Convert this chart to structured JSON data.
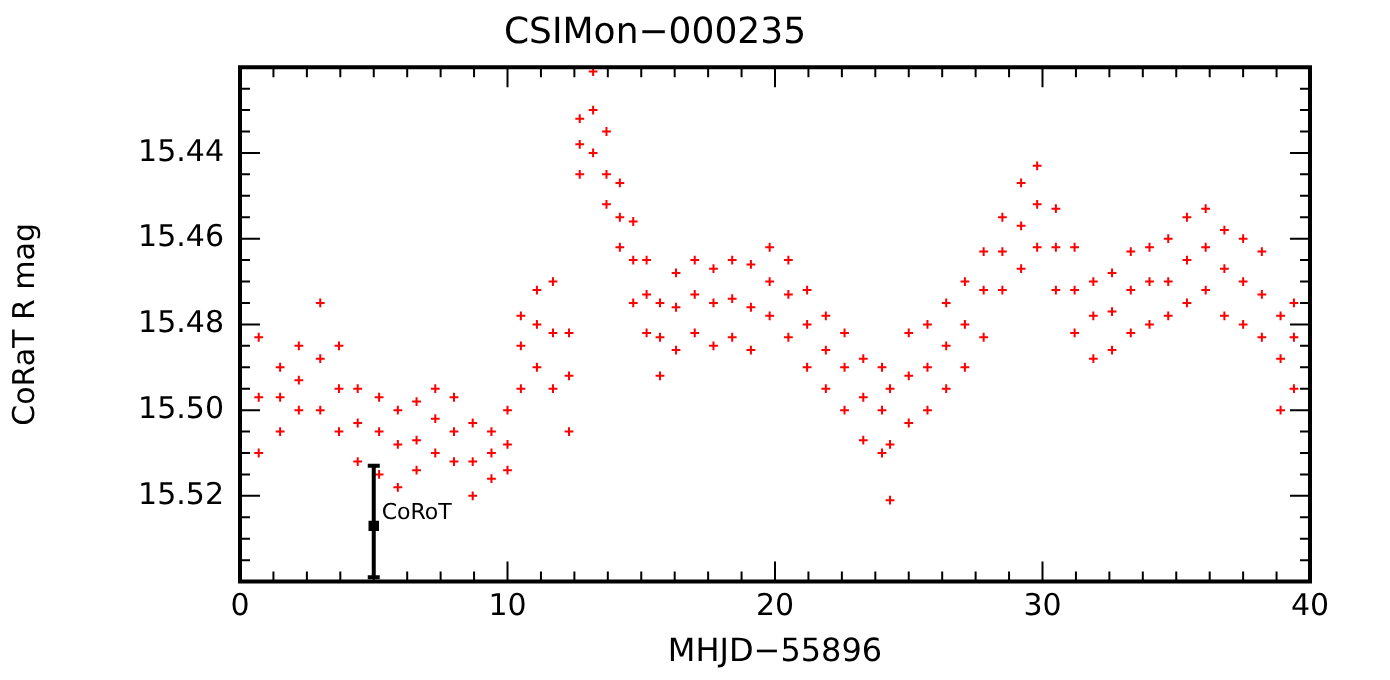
{
  "chart_data": {
    "type": "scatter",
    "title": "CSIMon−000235",
    "xlabel": "MHJD−55896",
    "ylabel": "CoRaT R mag",
    "xlim": [
      0,
      40
    ],
    "xticks": [
      0,
      {
        "value": 1.25,
        "label": null
      },
      {
        "value": 2.5,
        "label": null
      },
      {
        "value": 3.75,
        "label": null
      },
      {
        "value": 5,
        "label": null
      },
      {
        "value": 6.25,
        "label": null
      },
      {
        "value": 7.5,
        "label": null
      },
      {
        "value": 8.75,
        "label": null
      },
      10,
      {
        "value": 11.25,
        "label": null
      },
      {
        "value": 12.5,
        "label": null
      },
      {
        "value": 13.75,
        "label": null
      },
      {
        "value": 15,
        "label": null
      },
      {
        "value": 16.25,
        "label": null
      },
      {
        "value": 17.5,
        "label": null
      },
      {
        "value": 18.75,
        "label": null
      },
      20,
      {
        "value": 21.25,
        "label": null
      },
      {
        "value": 22.5,
        "label": null
      },
      {
        "value": 23.75,
        "label": null
      },
      {
        "value": 25,
        "label": null
      },
      {
        "value": 26.25,
        "label": null
      },
      {
        "value": 27.5,
        "label": null
      },
      {
        "value": 28.75,
        "label": null
      },
      30,
      {
        "value": 31.25,
        "label": null
      },
      {
        "value": 32.5,
        "label": null
      },
      {
        "value": 33.75,
        "label": null
      },
      {
        "value": 35,
        "label": null
      },
      {
        "value": 36.25,
        "label": null
      },
      {
        "value": 37.5,
        "label": null
      },
      {
        "value": 38.75,
        "label": null
      },
      40
    ],
    "ylim": [
      15.54,
      15.42
    ],
    "yticks": [
      {
        "value": 15.425,
        "label": null
      },
      {
        "value": 15.43,
        "label": null
      },
      {
        "value": 15.435,
        "label": null
      },
      15.44,
      {
        "value": 15.445,
        "label": null
      },
      {
        "value": 15.45,
        "label": null
      },
      {
        "value": 15.455,
        "label": null
      },
      15.46,
      {
        "value": 15.465,
        "label": null
      },
      {
        "value": 15.47,
        "label": null
      },
      {
        "value": 15.475,
        "label": null
      },
      15.48,
      {
        "value": 15.485,
        "label": null
      },
      {
        "value": 15.49,
        "label": null
      },
      {
        "value": 15.495,
        "label": null
      },
      {
        "value": 15.5,
        "label": "15.50"
      },
      {
        "value": 15.505,
        "label": null
      },
      {
        "value": 15.51,
        "label": null
      },
      {
        "value": 15.515,
        "label": null
      },
      15.52,
      {
        "value": 15.525,
        "label": null
      },
      {
        "value": 15.53,
        "label": null
      },
      {
        "value": 15.535,
        "label": null
      }
    ],
    "grid": false,
    "legend": false,
    "marker": "cross",
    "series": [
      {
        "color": "#ff0000",
        "x": [
          0.7,
          0.7,
          0.7,
          1.5,
          1.5,
          1.5,
          2.2,
          2.2,
          2.2,
          3.0,
          3.0,
          3.0,
          3.7,
          3.7,
          3.7,
          4.4,
          4.4,
          4.4,
          5.2,
          5.2,
          5.2,
          5.9,
          5.9,
          5.9,
          6.6,
          6.6,
          6.6,
          7.3,
          7.3,
          7.3,
          8.0,
          8.0,
          8.0,
          8.7,
          8.7,
          8.7,
          9.4,
          9.4,
          9.4,
          10.0,
          10.0,
          10.0,
          10.5,
          10.5,
          10.5,
          11.1,
          11.1,
          11.1,
          11.7,
          11.7,
          11.7,
          12.3,
          12.3,
          12.3,
          12.7,
          12.7,
          12.7,
          13.2,
          13.2,
          13.2,
          13.7,
          13.7,
          13.7,
          14.2,
          14.2,
          14.2,
          14.7,
          14.7,
          14.7,
          15.2,
          15.2,
          15.2,
          15.7,
          15.7,
          15.7,
          16.3,
          16.3,
          16.3,
          17.0,
          17.0,
          17.0,
          17.7,
          17.7,
          17.7,
          18.4,
          18.4,
          18.4,
          19.1,
          19.1,
          19.1,
          19.8,
          19.8,
          19.8,
          20.5,
          20.5,
          20.5,
          21.2,
          21.2,
          21.2,
          21.9,
          21.9,
          21.9,
          22.6,
          22.6,
          22.6,
          23.3,
          23.3,
          23.3,
          24.0,
          24.0,
          24.0,
          24.3,
          24.3,
          24.3,
          25.0,
          25.0,
          25.0,
          25.7,
          25.7,
          25.7,
          26.4,
          26.4,
          26.4,
          27.1,
          27.1,
          27.1,
          27.8,
          27.8,
          27.8,
          28.5,
          28.5,
          28.5,
          29.2,
          29.2,
          29.2,
          29.8,
          29.8,
          29.8,
          30.5,
          30.5,
          30.5,
          31.2,
          31.2,
          31.2,
          31.9,
          31.9,
          31.9,
          32.6,
          32.6,
          32.6,
          33.3,
          33.3,
          33.3,
          34.0,
          34.0,
          34.0,
          34.7,
          34.7,
          34.7,
          35.4,
          35.4,
          35.4,
          36.1,
          36.1,
          36.1,
          36.8,
          36.8,
          36.8,
          37.5,
          37.5,
          37.5,
          38.2,
          38.2,
          38.2,
          38.9,
          38.9,
          38.9,
          39.4,
          39.4,
          39.4
        ],
        "values": [
          15.483,
          15.497,
          15.51,
          15.49,
          15.497,
          15.505,
          15.485,
          15.493,
          15.5,
          15.475,
          15.488,
          15.5,
          15.485,
          15.495,
          15.505,
          15.495,
          15.503,
          15.512,
          15.497,
          15.505,
          15.515,
          15.5,
          15.508,
          15.518,
          15.498,
          15.507,
          15.514,
          15.495,
          15.502,
          15.51,
          15.497,
          15.505,
          15.512,
          15.503,
          15.512,
          15.52,
          15.505,
          15.51,
          15.516,
          15.5,
          15.508,
          15.514,
          15.478,
          15.485,
          15.495,
          15.472,
          15.48,
          15.49,
          15.47,
          15.482,
          15.495,
          15.482,
          15.492,
          15.505,
          15.432,
          15.438,
          15.445,
          15.421,
          15.43,
          15.44,
          15.435,
          15.445,
          15.452,
          15.447,
          15.455,
          15.462,
          15.456,
          15.465,
          15.475,
          15.465,
          15.473,
          15.482,
          15.475,
          15.483,
          15.492,
          15.468,
          15.476,
          15.486,
          15.465,
          15.473,
          15.482,
          15.467,
          15.475,
          15.485,
          15.465,
          15.474,
          15.483,
          15.466,
          15.476,
          15.486,
          15.462,
          15.47,
          15.478,
          15.465,
          15.473,
          15.483,
          15.472,
          15.48,
          15.49,
          15.478,
          15.486,
          15.495,
          15.482,
          15.49,
          15.5,
          15.488,
          15.497,
          15.507,
          15.49,
          15.5,
          15.51,
          15.495,
          15.508,
          15.521,
          15.482,
          15.492,
          15.503,
          15.48,
          15.49,
          15.5,
          15.475,
          15.485,
          15.495,
          15.47,
          15.48,
          15.49,
          15.463,
          15.472,
          15.483,
          15.455,
          15.463,
          15.472,
          15.447,
          15.457,
          15.467,
          15.443,
          15.452,
          15.462,
          15.453,
          15.462,
          15.472,
          15.462,
          15.472,
          15.482,
          15.47,
          15.478,
          15.488,
          15.468,
          15.477,
          15.486,
          15.463,
          15.472,
          15.482,
          15.462,
          15.47,
          15.48,
          15.46,
          15.47,
          15.478,
          15.455,
          15.465,
          15.475,
          15.453,
          15.462,
          15.472,
          15.458,
          15.467,
          15.478,
          15.46,
          15.47,
          15.48,
          15.463,
          15.473,
          15.483,
          15.478,
          15.488,
          15.5,
          15.475,
          15.483,
          15.495
        ]
      },
      {
        "name": "CoRoT",
        "color": "#000000",
        "marker": "square",
        "x": [
          5
        ],
        "values": [
          15.527
        ],
        "errors": [
          [
            15.513,
            15.539
          ]
        ]
      }
    ]
  }
}
